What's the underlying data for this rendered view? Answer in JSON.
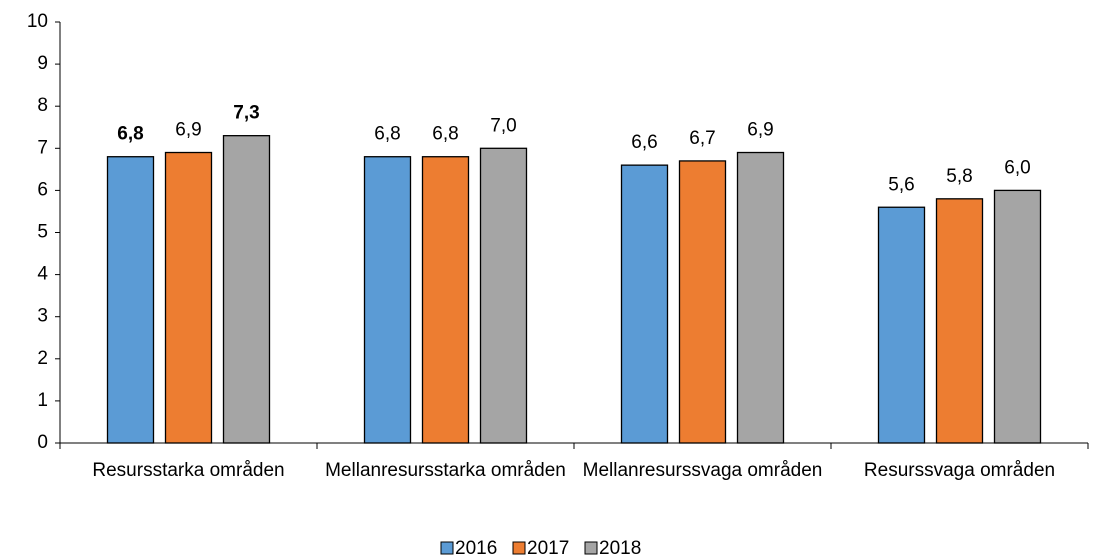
{
  "chart_data": {
    "type": "bar",
    "categories": [
      "Resursstarka områden",
      "Mellanresursstarka områden",
      "Mellanresurssvaga områden",
      "Resurssvaga områden"
    ],
    "series": [
      {
        "name": "2016",
        "color": "#5b9bd5",
        "values": [
          6.8,
          6.8,
          6.6,
          5.6
        ],
        "value_labels": [
          "6,8",
          "6,8",
          "6,6",
          "5,6"
        ],
        "value_label_bold": [
          true,
          false,
          false,
          false
        ]
      },
      {
        "name": "2017",
        "color": "#ed7d31",
        "values": [
          6.9,
          6.8,
          6.7,
          5.8
        ],
        "value_labels": [
          "6,9",
          "6,8",
          "6,7",
          "5,8"
        ],
        "value_label_bold": [
          false,
          false,
          false,
          false
        ]
      },
      {
        "name": "2018",
        "color": "#a5a5a5",
        "values": [
          7.3,
          7.0,
          6.9,
          6.0
        ],
        "value_labels": [
          "7,3",
          "7,0",
          "6,9",
          "6,0"
        ],
        "value_label_bold": [
          true,
          false,
          false,
          false
        ]
      }
    ],
    "ylim": [
      0,
      10
    ],
    "yticks": [
      0,
      1,
      2,
      3,
      4,
      5,
      6,
      7,
      8,
      9,
      10
    ],
    "grid": false,
    "legend": "bottom"
  }
}
